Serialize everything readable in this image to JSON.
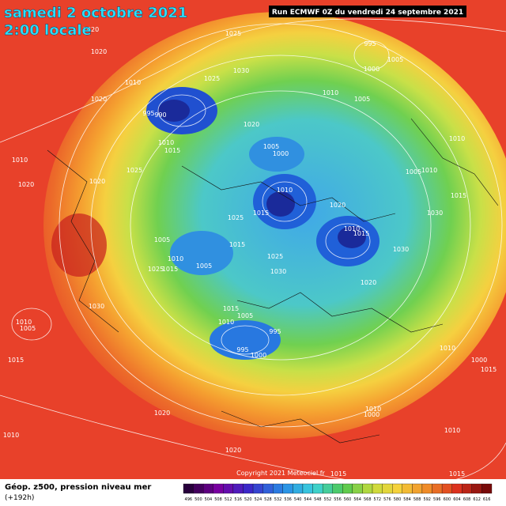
{
  "header": {
    "valid_date": "samedi 2 octobre 2021",
    "local_time": "2:00 locale",
    "run": "Run ECMWF 0Z du vendredi 24 septembre 2021"
  },
  "map": {
    "isobar_labels": [
      "1020",
      "1025",
      "995",
      "1005",
      "1000",
      "1020",
      "1010",
      "1025",
      "1030",
      "1010",
      "1005",
      "1020",
      "995",
      "990",
      "1020",
      "1005",
      "1000",
      "1010",
      "1015",
      "1010",
      "1005",
      "1010",
      "1010",
      "1020",
      "1025",
      "1020",
      "1010",
      "1015",
      "1025",
      "1020",
      "1030",
      "1015",
      "1005",
      "1015",
      "1010",
      "1015",
      "1025",
      "1030",
      "1010",
      "1005",
      "1020",
      "1030",
      "1025",
      "1015",
      "1030",
      "1010",
      "1005",
      "1015",
      "1010",
      "1005",
      "995",
      "995",
      "1000",
      "1015",
      "1010",
      "1000",
      "1015",
      "1010",
      "1000",
      "1010",
      "1020",
      "1020",
      "1010",
      "1015",
      "1015"
    ],
    "copyright": "Copyright 2021 Meteociel.fr"
  },
  "footer": {
    "product": "Géop. z500, pression niveau mer",
    "lead": "(+192h)",
    "scale": [
      496,
      500,
      504,
      508,
      512,
      516,
      520,
      524,
      528,
      532,
      536,
      540,
      544,
      548,
      552,
      556,
      560,
      564,
      568,
      572,
      576,
      580,
      584,
      588,
      592,
      596,
      600,
      604,
      608,
      612,
      616
    ]
  }
}
